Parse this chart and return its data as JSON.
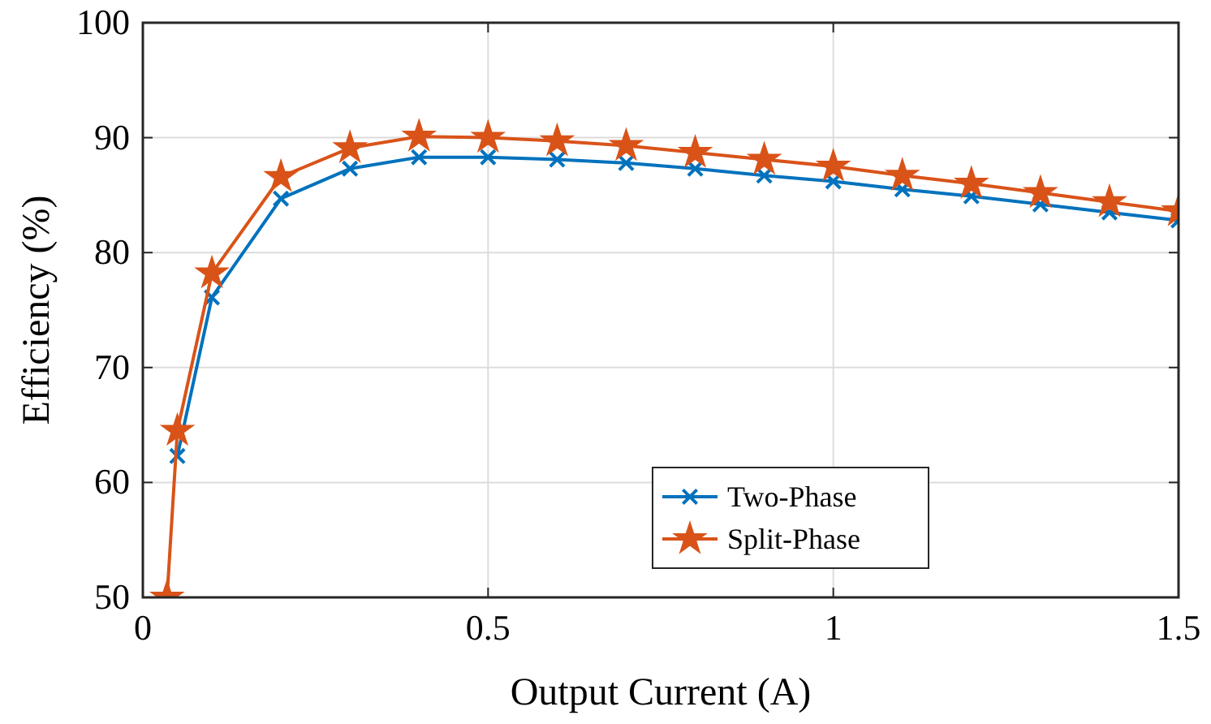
{
  "chart_data": {
    "type": "line",
    "xlabel": "Output Current (A)",
    "ylabel": "Efficiency (%)",
    "xlim": [
      0,
      1.5
    ],
    "xticks": [
      0,
      0.5,
      1,
      1.5
    ],
    "ylim": [
      50,
      100
    ],
    "yticks": [
      50,
      60,
      70,
      80,
      90,
      100
    ],
    "grid": true,
    "legend": "bottom",
    "x": [
      0.035,
      0.05,
      0.1,
      0.2,
      0.3,
      0.4,
      0.5,
      0.6,
      0.7,
      0.8,
      0.9,
      1.0,
      1.1,
      1.2,
      1.3,
      1.4,
      1.5
    ],
    "series": [
      {
        "name": "Two-Phase",
        "color": "#0072bd",
        "marker": "cross",
        "values": [
          null,
          62.3,
          76.1,
          84.7,
          87.3,
          88.3,
          88.3,
          88.1,
          87.8,
          87.3,
          86.7,
          86.2,
          85.5,
          84.9,
          84.2,
          83.5,
          82.8
        ]
      },
      {
        "name": "Split-Phase",
        "color": "#d95319",
        "marker": "star",
        "values": [
          50,
          64.5,
          78.2,
          86.6,
          89.1,
          90.1,
          90.0,
          89.7,
          89.3,
          88.7,
          88.1,
          87.5,
          86.7,
          86.0,
          85.2,
          84.4,
          83.6
        ]
      }
    ]
  }
}
